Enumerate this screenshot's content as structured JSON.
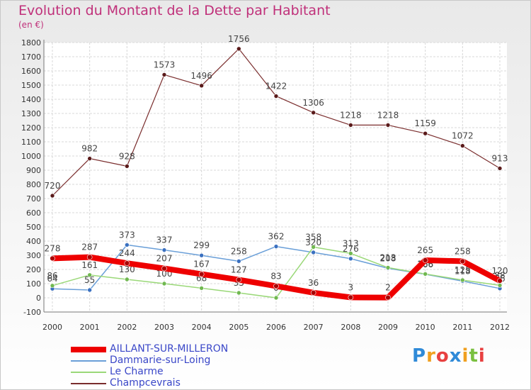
{
  "chart_data": {
    "type": "line",
    "title": "Evolution du Montant de la Dette par Habitant",
    "subtitle": "(en €)",
    "xlabel": "",
    "ylabel": "",
    "ylim": [
      -100,
      1800
    ],
    "y_ticks": [
      "-100",
      "0",
      "100",
      "200",
      "300",
      "400",
      "500",
      "600",
      "700",
      "800",
      "900",
      "1000",
      "1100",
      "1200",
      "1300",
      "1400",
      "1500",
      "1600",
      "1700",
      "1800"
    ],
    "categories": [
      "2000",
      "2001",
      "2002",
      "2003",
      "2004",
      "2005",
      "2006",
      "2007",
      "2008",
      "2009",
      "2010",
      "2011",
      "2012"
    ],
    "grid": true,
    "legend_position": "bottom-left",
    "series": [
      {
        "name": "AILLANT-SUR-MILLERON",
        "color": "#ee0000",
        "values": [
          278,
          287,
          244,
          207,
          167,
          127,
          83,
          36,
          3,
          2,
          265,
          258,
          120
        ]
      },
      {
        "name": "Dammarie-sur-Loing",
        "color": "#6a9fd8",
        "values": [
          64,
          55,
          373,
          337,
          299,
          258,
          362,
          320,
          276,
          208,
          166,
          118,
          66
        ]
      },
      {
        "name": "Le Charme",
        "color": "#9ad878",
        "values": [
          86,
          161,
          130,
          100,
          68,
          35,
          0,
          358,
          313,
          213,
          168,
          125,
          88
        ]
      },
      {
        "name": "Champcevrais",
        "color": "#7a2d2d",
        "values": [
          720,
          982,
          928,
          1573,
          1496,
          1756,
          1422,
          1306,
          1218,
          1218,
          1159,
          1072,
          913
        ]
      }
    ]
  },
  "logo": {
    "letters": [
      "P",
      "r",
      "o",
      "x",
      "i",
      "t",
      "i"
    ]
  }
}
